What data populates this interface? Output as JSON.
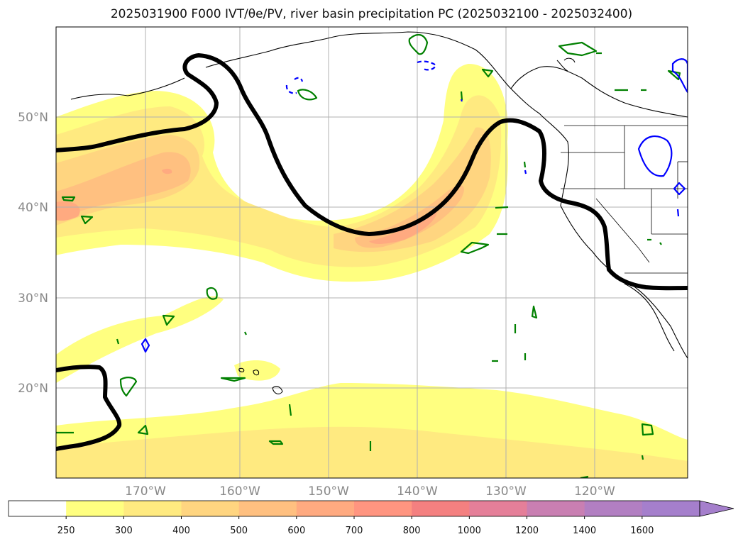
{
  "title": "2025031900 F000 IVT/θe/PV, river basin precipitation PC (2025032100 - 2025032400)",
  "latitude_labels": [
    "50°N",
    "40°N",
    "30°N",
    "20°N"
  ],
  "longitude_labels": [
    "170°W",
    "160°W",
    "150°W",
    "140°W",
    "130°W",
    "120°W"
  ],
  "colorbar": {
    "ticks": [
      "250",
      "300",
      "400",
      "500",
      "600",
      "700",
      "800",
      "1000",
      "1200",
      "1400",
      "1600"
    ],
    "colors": [
      "#ffffff",
      "#ffff80",
      "#ffea80",
      "#ffd580",
      "#ffc080",
      "#ffaa80",
      "#ff9580",
      "#f48080",
      "#e57f99",
      "#c97fb2",
      "#b27fc2",
      "#a57fcc"
    ]
  },
  "map_extent": {
    "lon_min": -180,
    "lon_max": -113,
    "lat_min": 10,
    "lat_max": 60
  },
  "colors": {
    "pv_contour": "#000000",
    "positive_contour": "#008000",
    "negative_contour": "#0000ff",
    "gridline": "#b0b0b0",
    "coastline": "#000000"
  }
}
